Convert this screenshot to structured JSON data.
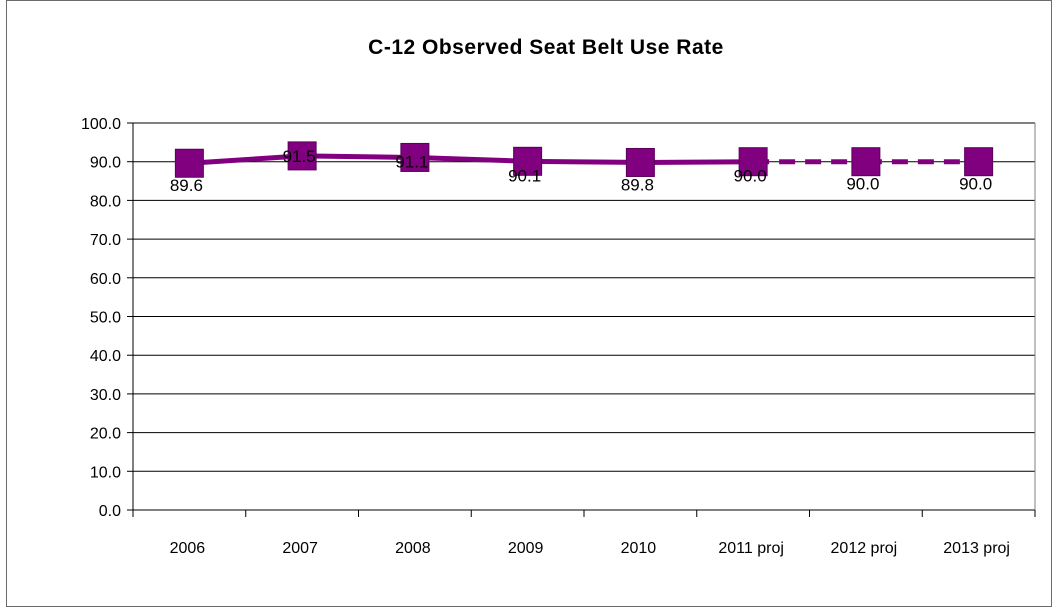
{
  "colors": {
    "series": "#800080",
    "gridline": "#000000",
    "background": "#ffffff"
  },
  "chart_data": {
    "type": "line",
    "title": "C-12 Observed Seat Belt Use Rate",
    "xlabel": "",
    "ylabel": "",
    "categories": [
      "2006",
      "2007",
      "2008",
      "2009",
      "2010",
      "2011 proj",
      "2012 proj",
      "2013 proj"
    ],
    "series": [
      {
        "values": [
          89.6,
          91.5,
          91.1,
          90.1,
          89.8,
          90.0,
          90.0,
          90.0
        ],
        "data_labels": [
          "89.6",
          "91.5",
          "91.1",
          "90.1",
          "89.8",
          "90.0",
          "90.0",
          "90.0"
        ],
        "marker": "square",
        "dashed_from_index": 5
      }
    ],
    "ylim": [
      0,
      100
    ],
    "y_ticks": [
      "0.0",
      "10.0",
      "20.0",
      "30.0",
      "40.0",
      "50.0",
      "60.0",
      "70.0",
      "80.0",
      "90.0",
      "100.0"
    ],
    "grid": true,
    "legend": "none"
  }
}
